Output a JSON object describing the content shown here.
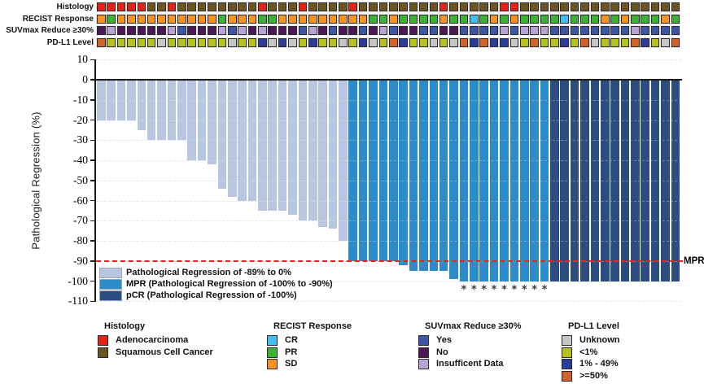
{
  "y_axis": {
    "title": "Pathological Regression (%)",
    "ticks": [
      10,
      0,
      -10,
      -20,
      -30,
      -40,
      -50,
      -60,
      -70,
      -80,
      -90,
      -100,
      -110
    ]
  },
  "mpr_annotation": {
    "label": "MPR",
    "threshold": -90,
    "line_color": "#e8221c"
  },
  "annotation_tracks": {
    "labels": [
      "Histology",
      "RECIST Response",
      "SUVmax Reduce ≥30%",
      "PD-L1 Level"
    ],
    "histology": "AAAAASSASSSSSSSSASSSASSSSASSSSSSSSASSSSSAASSSSSSSSSSSSSSSS",
    "recist": "OGOOOOOOOOOOGOOOGGOOOOOOOOOGGOGGGGOGGCGOGOGGGGCGGGOGOGGGOG",
    "suvmax": "NINNNNNIYNNNIYININNNYINYNNYNIYNNYYNNYYYYIYIIIYYYYYYYYIYYYY",
    "pdl1": "HLLLLLULLLLLLULLMUMULMLLULMULHMLLULUHMHMMULHLLMLHULLLHMLUH"
  },
  "palettes": {
    "histology": {
      "A": "#e32219",
      "S": "#6e5420"
    },
    "recist": {
      "C": "#41bfee",
      "G": "#3cb234",
      "O": "#f79421"
    },
    "suvmax": {
      "Y": "#3d55a5",
      "N": "#4a1956",
      "I": "#b7a4d4"
    },
    "pdl1": {
      "U": "#c6c6c6",
      "L": "#b8c21f",
      "M": "#2c3d99",
      "H": "#d2632a"
    }
  },
  "chart_data": {
    "type": "bar",
    "title": "",
    "xlabel": "",
    "ylabel": "Pathological Regression (%)",
    "ylim": [
      -110,
      10
    ],
    "grid": "horizontal-dashed",
    "n_patients": 58,
    "values": [
      -20,
      -20,
      -20,
      -20,
      -25,
      -30,
      -30,
      -30,
      -30,
      -40,
      -40,
      -42,
      -54,
      -58,
      -60,
      -60,
      -65,
      -65,
      -65,
      -67,
      -70,
      -70,
      -73,
      -74,
      -80,
      -90,
      -90,
      -90,
      -90,
      -90,
      -92,
      -95,
      -95,
      -95,
      -95,
      -99,
      -100,
      -100,
      -100,
      -100,
      -100,
      -100,
      -100,
      -100,
      -100,
      -100,
      -100,
      -100,
      -100,
      -100,
      -100,
      -100,
      -100,
      -100,
      -100,
      -100,
      -100,
      -100
    ],
    "groups": {
      "light": [
        1,
        25
      ],
      "mpr": [
        26,
        45
      ],
      "pcr": [
        46,
        58
      ]
    },
    "asterisk_bars": [
      37,
      38,
      39,
      40,
      41,
      42,
      43,
      44,
      45
    ],
    "asterisk_symbol": "*",
    "bar_colors": {
      "light": "#b9c6e2",
      "mpr": "#2c8cca",
      "pcr": "#2c4d80"
    }
  },
  "plot_legend": {
    "items": [
      {
        "key": "light",
        "color": "#b9c6e2",
        "label": "Pathological Regression of -89% to 0%"
      },
      {
        "key": "mpr",
        "color": "#2c8cca",
        "label": "MPR (Pathological Regression of -100% to -90%)"
      },
      {
        "key": "pcr",
        "color": "#2c4d80",
        "label": "pCR (Pathological Regression of -100%)"
      }
    ]
  },
  "bottom_legends": [
    {
      "title": "Histology",
      "items": [
        {
          "color": "#e32219",
          "label": "Adenocarcinoma"
        },
        {
          "color": "#6e5420",
          "label": "Squamous Cell Cancer"
        }
      ]
    },
    {
      "title": "RECIST Response",
      "items": [
        {
          "color": "#41bfee",
          "label": "CR"
        },
        {
          "color": "#3cb234",
          "label": "PR"
        },
        {
          "color": "#f79421",
          "label": "SD"
        }
      ]
    },
    {
      "title": "SUVmax Reduce ≥30%",
      "items": [
        {
          "color": "#3d55a5",
          "label": "Yes"
        },
        {
          "color": "#4a1956",
          "label": "No"
        },
        {
          "color": "#b7a4d4",
          "label": "Insufficent Data"
        }
      ]
    },
    {
      "title": "PD-L1 Level",
      "items": [
        {
          "color": "#c6c6c6",
          "label": "Unknown"
        },
        {
          "color": "#b8bd1e",
          "label": "<1%"
        },
        {
          "color": "#2c3d99",
          "label": "1% - 49%"
        },
        {
          "color": "#d2632a",
          "label": ">=50%"
        }
      ]
    }
  ]
}
